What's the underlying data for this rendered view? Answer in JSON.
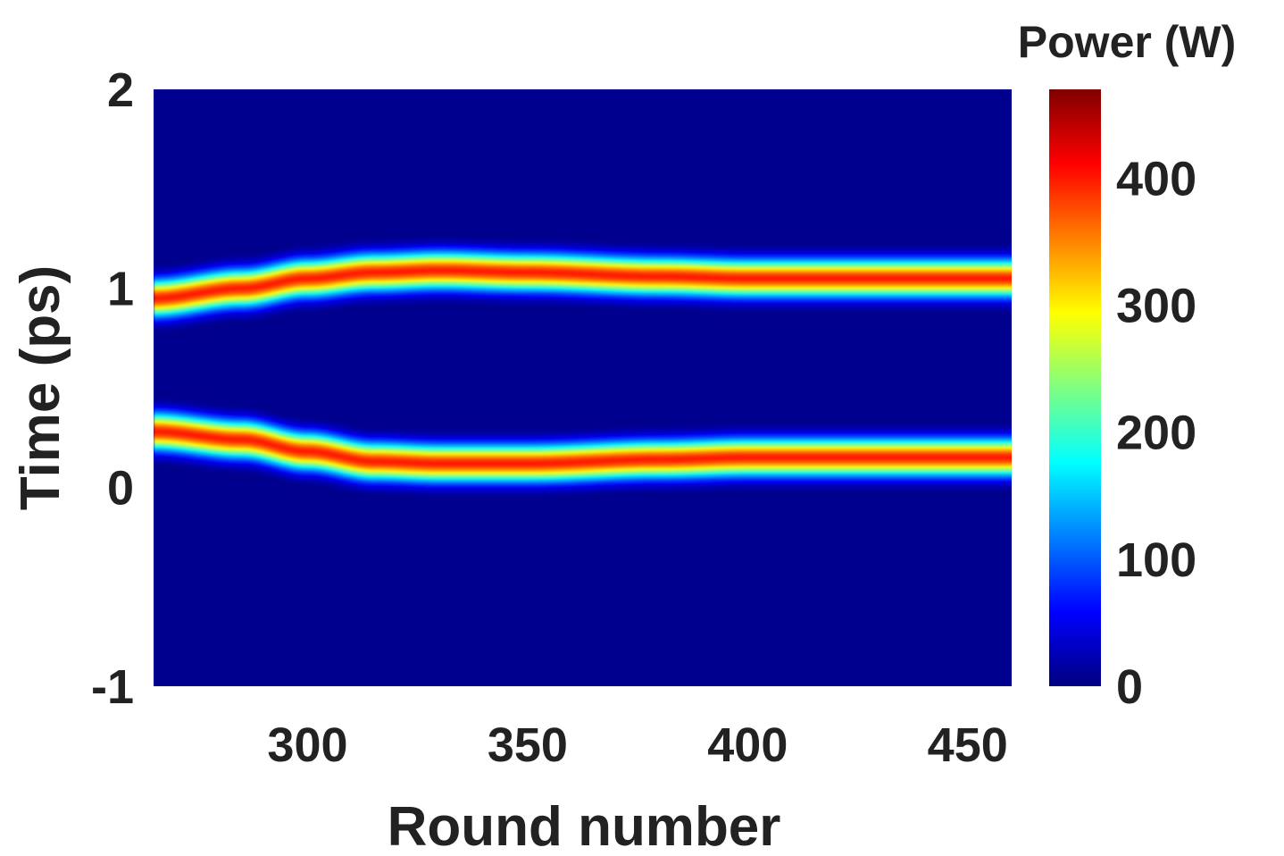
{
  "chart_data": {
    "type": "heatmap",
    "xlabel": "Round number",
    "ylabel": "Time (ps)",
    "xlim": [
      265,
      460
    ],
    "ylim": [
      -1,
      2
    ],
    "xticks": [
      300,
      350,
      400,
      450
    ],
    "yticks": [
      -1,
      0,
      1,
      2
    ],
    "colorbar": {
      "title": "Power (W)",
      "range": [
        0,
        470
      ],
      "ticks": [
        0,
        100,
        200,
        300,
        400
      ],
      "colormap": "jet"
    },
    "background_power": 0,
    "peak_power": 400,
    "series": [
      {
        "x": [
          265,
          285,
          300,
          315,
          330,
          350,
          380,
          400,
          430,
          460
        ],
        "center": [
          0.95,
          1.0,
          1.05,
          1.08,
          1.09,
          1.08,
          1.06,
          1.05,
          1.05,
          1.05
        ]
      },
      {
        "x": [
          265,
          285,
          300,
          315,
          330,
          350,
          380,
          400,
          430,
          460
        ],
        "center": [
          0.28,
          0.24,
          0.18,
          0.13,
          0.12,
          0.12,
          0.14,
          0.15,
          0.15,
          0.15
        ]
      }
    ]
  }
}
